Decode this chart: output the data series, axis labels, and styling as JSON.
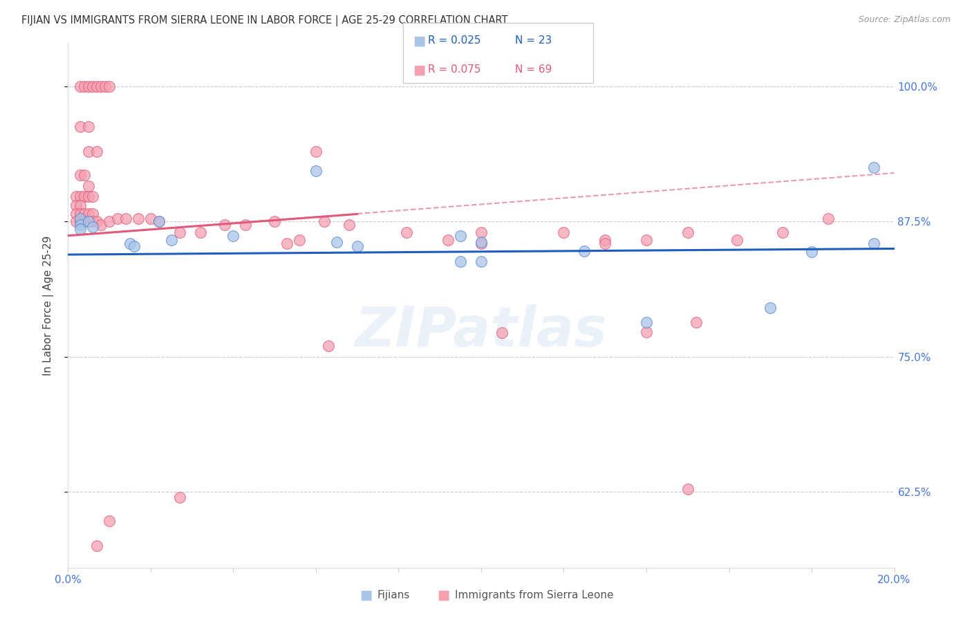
{
  "title": "FIJIAN VS IMMIGRANTS FROM SIERRA LEONE IN LABOR FORCE | AGE 25-29 CORRELATION CHART",
  "source": "Source: ZipAtlas.com",
  "ylabel": "In Labor Force | Age 25-29",
  "yticks": [
    0.625,
    0.75,
    0.875,
    1.0
  ],
  "ytick_labels": [
    "62.5%",
    "75.0%",
    "87.5%",
    "100.0%"
  ],
  "xmin": 0.0,
  "xmax": 0.2,
  "ymin": 0.555,
  "ymax": 1.04,
  "watermark": "ZIPatlas",
  "blue_scatter": [
    [
      0.003,
      0.878
    ],
    [
      0.003,
      0.872
    ],
    [
      0.003,
      0.868
    ],
    [
      0.005,
      0.875
    ],
    [
      0.006,
      0.87
    ],
    [
      0.015,
      0.855
    ],
    [
      0.016,
      0.852
    ],
    [
      0.022,
      0.875
    ],
    [
      0.025,
      0.858
    ],
    [
      0.04,
      0.862
    ],
    [
      0.065,
      0.856
    ],
    [
      0.07,
      0.852
    ],
    [
      0.095,
      0.862
    ],
    [
      0.1,
      0.856
    ],
    [
      0.125,
      0.848
    ],
    [
      0.14,
      0.782
    ],
    [
      0.17,
      0.795
    ],
    [
      0.18,
      0.847
    ],
    [
      0.195,
      0.855
    ],
    [
      0.095,
      0.838
    ],
    [
      0.1,
      0.838
    ],
    [
      0.06,
      0.922
    ],
    [
      0.195,
      0.925
    ]
  ],
  "pink_scatter": [
    [
      0.003,
      1.0
    ],
    [
      0.004,
      1.0
    ],
    [
      0.005,
      1.0
    ],
    [
      0.006,
      1.0
    ],
    [
      0.007,
      1.0
    ],
    [
      0.008,
      1.0
    ],
    [
      0.009,
      1.0
    ],
    [
      0.01,
      1.0
    ],
    [
      0.003,
      0.963
    ],
    [
      0.005,
      0.963
    ],
    [
      0.005,
      0.94
    ],
    [
      0.007,
      0.94
    ],
    [
      0.003,
      0.918
    ],
    [
      0.004,
      0.918
    ],
    [
      0.005,
      0.908
    ],
    [
      0.002,
      0.898
    ],
    [
      0.003,
      0.898
    ],
    [
      0.004,
      0.898
    ],
    [
      0.005,
      0.898
    ],
    [
      0.006,
      0.898
    ],
    [
      0.002,
      0.89
    ],
    [
      0.003,
      0.89
    ],
    [
      0.002,
      0.882
    ],
    [
      0.003,
      0.882
    ],
    [
      0.004,
      0.882
    ],
    [
      0.005,
      0.882
    ],
    [
      0.006,
      0.882
    ],
    [
      0.002,
      0.875
    ],
    [
      0.003,
      0.875
    ],
    [
      0.004,
      0.875
    ],
    [
      0.006,
      0.875
    ],
    [
      0.007,
      0.875
    ],
    [
      0.008,
      0.872
    ],
    [
      0.01,
      0.875
    ],
    [
      0.012,
      0.878
    ],
    [
      0.014,
      0.878
    ],
    [
      0.017,
      0.878
    ],
    [
      0.02,
      0.878
    ],
    [
      0.022,
      0.875
    ],
    [
      0.027,
      0.865
    ],
    [
      0.032,
      0.865
    ],
    [
      0.038,
      0.872
    ],
    [
      0.043,
      0.872
    ],
    [
      0.05,
      0.875
    ],
    [
      0.056,
      0.858
    ],
    [
      0.062,
      0.875
    ],
    [
      0.068,
      0.872
    ],
    [
      0.082,
      0.865
    ],
    [
      0.092,
      0.858
    ],
    [
      0.1,
      0.865
    ],
    [
      0.12,
      0.865
    ],
    [
      0.13,
      0.858
    ],
    [
      0.06,
      0.94
    ],
    [
      0.14,
      0.773
    ],
    [
      0.152,
      0.782
    ],
    [
      0.162,
      0.858
    ],
    [
      0.173,
      0.865
    ],
    [
      0.184,
      0.878
    ],
    [
      0.053,
      0.855
    ],
    [
      0.1,
      0.855
    ],
    [
      0.13,
      0.855
    ],
    [
      0.14,
      0.858
    ],
    [
      0.15,
      0.865
    ],
    [
      0.105,
      0.772
    ],
    [
      0.063,
      0.76
    ],
    [
      0.027,
      0.62
    ],
    [
      0.01,
      0.598
    ],
    [
      0.007,
      0.575
    ],
    [
      0.15,
      0.628
    ]
  ],
  "blue_line_color": "#1f5dbe",
  "pink_line_color": "#e05a7a",
  "pink_dash_color": "#e07090",
  "scatter_blue_color": "#aac4e8",
  "scatter_pink_color": "#f4a0b0",
  "scatter_blue_edge": "#5588cc",
  "scatter_pink_edge": "#e05a7a",
  "title_color": "#333333",
  "axis_color": "#4477dd",
  "grid_color": "#cccccc",
  "blue_trendline": [
    0.0,
    0.8445,
    0.2,
    0.85
  ],
  "pink_trendline_solid": [
    0.0,
    0.862,
    0.07,
    0.882
  ],
  "pink_trendline_dash": [
    0.0,
    0.862,
    0.2,
    0.92
  ]
}
